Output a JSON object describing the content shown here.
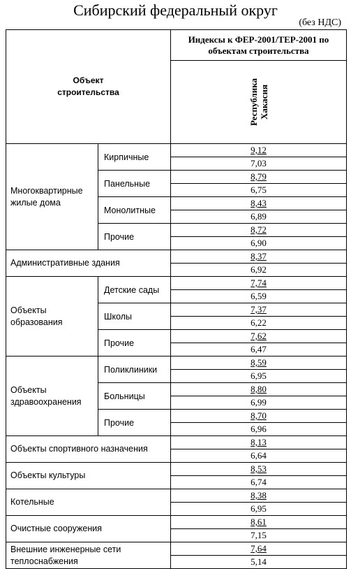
{
  "header": {
    "title": "Сибирский федеральный округ",
    "note": "(без НДС)",
    "col_object": "Объект строительства",
    "col_index": "Индексы к ФЕР-2001/ТЕР-2001 по объектам строительства",
    "col_region": "Республика Хакасия"
  },
  "rows": [
    {
      "group": "Многоквартирные жилые дома",
      "sub": "Кирпичные",
      "v1": "9,12",
      "v2": "7,03"
    },
    {
      "sub": "Панельные",
      "v1": "8,79",
      "v2": "6,75"
    },
    {
      "sub": "Монолитные",
      "v1": "8,43",
      "v2": "6,89"
    },
    {
      "sub": "Прочие",
      "v1": "8,72",
      "v2": "6,90"
    },
    {
      "label": "Административные здания",
      "v1": "8,37",
      "v2": "6,92"
    },
    {
      "group": "Объекты образования",
      "sub": "Детские сады",
      "v1": "7,74",
      "v2": "6,59"
    },
    {
      "sub": "Школы",
      "v1": "7,37",
      "v2": "6,22"
    },
    {
      "sub": "Прочие",
      "v1": "7,62",
      "v2": "6,47"
    },
    {
      "group": "Объекты здравоохранения",
      "sub": "Поликлиники",
      "v1": "8,59",
      "v2": "6,95"
    },
    {
      "sub": "Больницы",
      "v1": "8,80",
      "v2": "6,99"
    },
    {
      "sub": "Прочие",
      "v1": "8,70",
      "v2": "6,96"
    },
    {
      "label": "Объекты спортивного назначения",
      "v1": "8,13",
      "v2": "6,64"
    },
    {
      "label": "Объекты культуры",
      "v1": "8,53",
      "v2": "6,74"
    },
    {
      "label": "Котельные",
      "v1": "8,38",
      "v2": "6,95"
    },
    {
      "label": "Очистные сооружения",
      "v1": "8,61",
      "v2": "7,15"
    },
    {
      "label": "Внешние инженерные сети теплоснабжения",
      "v1": "7,64",
      "v2": "5,14"
    }
  ]
}
